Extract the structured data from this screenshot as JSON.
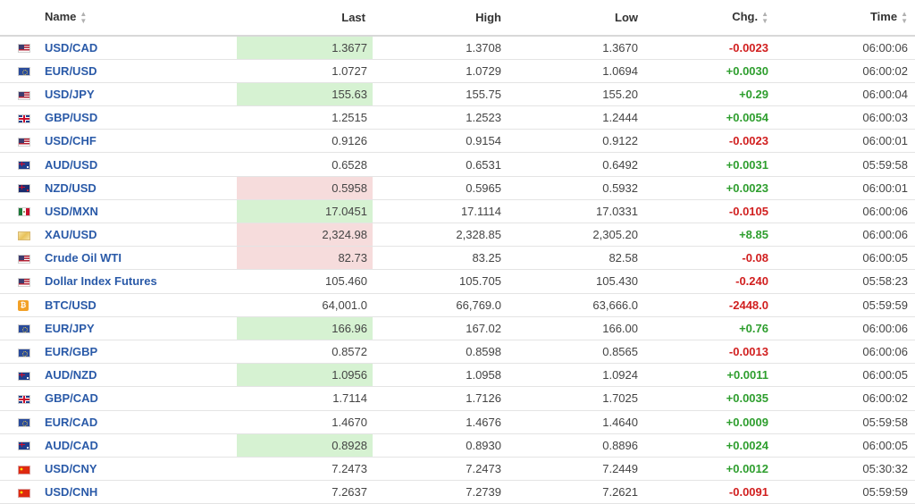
{
  "header": {
    "name": "Name",
    "last": "Last",
    "high": "High",
    "low": "Low",
    "chg": "Chg.",
    "time": "Time"
  },
  "rows": [
    {
      "flag": "us-flag-icon",
      "name": "USD/CAD",
      "last": "1.3677",
      "high": "1.3708",
      "low": "1.3670",
      "chg": "-0.0023",
      "time": "06:00:06"
    },
    {
      "flag": "eu-flag-icon",
      "name": "EUR/USD",
      "last": "1.0727",
      "high": "1.0729",
      "low": "1.0694",
      "chg": "+0.0030",
      "time": "06:00:02"
    },
    {
      "flag": "us-flag-icon",
      "name": "USD/JPY",
      "last": "155.63",
      "high": "155.75",
      "low": "155.20",
      "chg": "+0.29",
      "time": "06:00:04"
    },
    {
      "flag": "gb-flag-icon",
      "name": "GBP/USD",
      "last": "1.2515",
      "high": "1.2523",
      "low": "1.2444",
      "chg": "+0.0054",
      "time": "06:00:03"
    },
    {
      "flag": "us-flag-icon",
      "name": "USD/CHF",
      "last": "0.9126",
      "high": "0.9154",
      "low": "0.9122",
      "chg": "-0.0023",
      "time": "06:00:01"
    },
    {
      "flag": "au-flag-icon",
      "name": "AUD/USD",
      "last": "0.6528",
      "high": "0.6531",
      "low": "0.6492",
      "chg": "+0.0031",
      "time": "05:59:58"
    },
    {
      "flag": "nz-flag-icon",
      "name": "NZD/USD",
      "last": "0.5958",
      "high": "0.5965",
      "low": "0.5932",
      "chg": "+0.0023",
      "time": "06:00:01"
    },
    {
      "flag": "us-flag-icon",
      "name": "USD/MXN",
      "last": "17.0451",
      "high": "17.1114",
      "low": "17.0331",
      "chg": "-0.0105",
      "time": "06:00:06"
    },
    {
      "flag": "gold-icon",
      "name": "XAU/USD",
      "last": "2,324.98",
      "high": "2,328.85",
      "low": "2,305.20",
      "chg": "+8.85",
      "time": "06:00:06"
    },
    {
      "flag": "us-flag-icon",
      "name": "Crude Oil WTI",
      "last": "82.73",
      "high": "83.25",
      "low": "82.58",
      "chg": "-0.08",
      "time": "06:00:05"
    },
    {
      "flag": "us-flag-icon",
      "name": "Dollar Index Futures",
      "last": "105.460",
      "high": "105.705",
      "low": "105.430",
      "chg": "-0.240",
      "time": "05:58:23"
    },
    {
      "flag": "bitcoin-icon",
      "name": "BTC/USD",
      "last": "64,001.0",
      "high": "66,769.0",
      "low": "63,666.0",
      "chg": "-2448.0",
      "time": "05:59:59"
    },
    {
      "flag": "eu-flag-icon",
      "name": "EUR/JPY",
      "last": "166.96",
      "high": "167.02",
      "low": "166.00",
      "chg": "+0.76",
      "time": "06:00:06"
    },
    {
      "flag": "eu-flag-icon",
      "name": "EUR/GBP",
      "last": "0.8572",
      "high": "0.8598",
      "low": "0.8565",
      "chg": "-0.0013",
      "time": "06:00:06"
    },
    {
      "flag": "au-flag-icon",
      "name": "AUD/NZD",
      "last": "1.0956",
      "high": "1.0958",
      "low": "1.0924",
      "chg": "+0.0011",
      "time": "06:00:05"
    },
    {
      "flag": "gb-flag-icon",
      "name": "GBP/CAD",
      "last": "1.7114",
      "high": "1.7126",
      "low": "1.7025",
      "chg": "+0.0035",
      "time": "06:00:02"
    },
    {
      "flag": "eu-flag-icon",
      "name": "EUR/CAD",
      "last": "1.4670",
      "high": "1.4676",
      "low": "1.4640",
      "chg": "+0.0009",
      "time": "05:59:58"
    },
    {
      "flag": "au-flag-icon",
      "name": "AUD/CAD",
      "last": "0.8928",
      "high": "0.8930",
      "low": "0.8896",
      "chg": "+0.0024",
      "time": "06:00:05"
    },
    {
      "flag": "cn-flag-icon",
      "name": "USD/CNY",
      "last": "7.2473",
      "high": "7.2473",
      "low": "7.2449",
      "chg": "+0.0012",
      "time": "05:30:32"
    },
    {
      "flag": "cn-flag-icon",
      "name": "USD/CNH",
      "last": "7.2637",
      "high": "7.2739",
      "low": "7.2621",
      "chg": "-0.0091",
      "time": "05:59:59"
    }
  ],
  "colors": {
    "positive": "#2e9e2e",
    "negative": "#d11f1f",
    "link": "#2a5aa8",
    "flash_up_bg": "#d6f2d2",
    "flash_down_bg": "#f6dcdc"
  }
}
